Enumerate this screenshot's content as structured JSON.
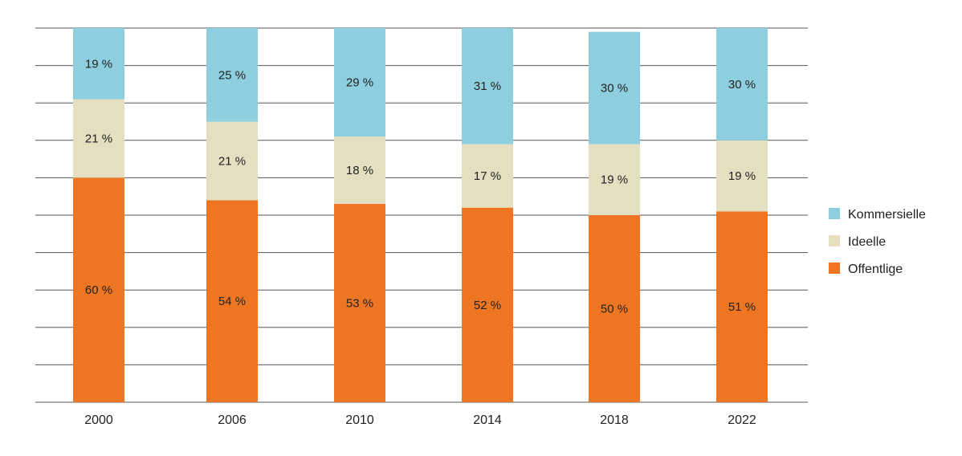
{
  "chart_data": {
    "type": "bar",
    "stacked": true,
    "normalized": true,
    "title": "",
    "xlabel": "",
    "ylabel": "",
    "ylim": [
      0,
      100
    ],
    "grid": true,
    "legend_position": "right",
    "categories": [
      "2000",
      "2006",
      "2010",
      "2014",
      "2018",
      "2022"
    ],
    "series": [
      {
        "name": "Offentlige",
        "color": "#ee7623",
        "values": [
          60,
          54,
          53,
          52,
          50,
          51
        ],
        "labels": [
          "60 %",
          "54 %",
          "53 %",
          "52 %",
          "50 %",
          "51 %"
        ]
      },
      {
        "name": "Ideelle",
        "color": "#e3dfc0",
        "values": [
          21,
          21,
          18,
          17,
          19,
          19
        ],
        "labels": [
          "21 %",
          "21 %",
          "18 %",
          "17 %",
          "19 %",
          "19 %"
        ]
      },
      {
        "name": "Kommersielle",
        "color": "#8ecfdf",
        "values": [
          19,
          25,
          29,
          31,
          30,
          30
        ],
        "labels": [
          "19 %",
          "25 %",
          "29 %",
          "31 %",
          "30 %",
          "30 %"
        ]
      }
    ],
    "legend_order": [
      "Kommersielle",
      "Ideelle",
      "Offentlige"
    ]
  }
}
